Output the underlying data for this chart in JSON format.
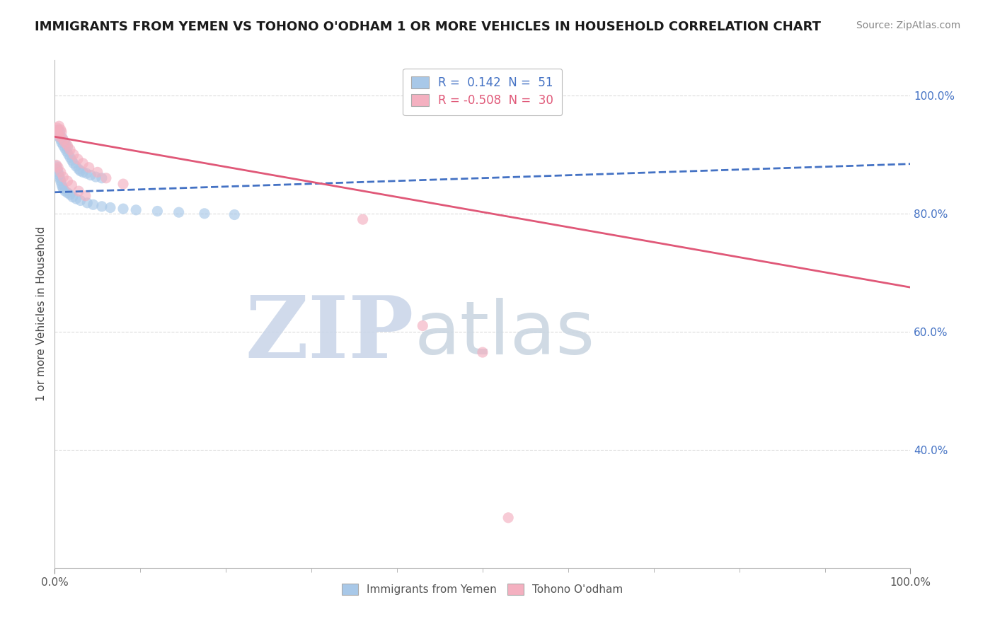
{
  "title": "IMMIGRANTS FROM YEMEN VS TOHONO O'ODHAM 1 OR MORE VEHICLES IN HOUSEHOLD CORRELATION CHART",
  "source": "Source: ZipAtlas.com",
  "ylabel": "1 or more Vehicles in Household",
  "xlim": [
    0.0,
    1.0
  ],
  "ylim": [
    0.2,
    1.06
  ],
  "x_tick_labels": [
    "0.0%",
    "100.0%"
  ],
  "y_ticks": [
    0.4,
    0.6,
    0.8,
    1.0
  ],
  "y_tick_labels": [
    "40.0%",
    "60.0%",
    "80.0%",
    "100.0%"
  ],
  "legend1_labels": [
    "R =  0.142  N =  51",
    "R = -0.508  N =  30"
  ],
  "legend2_labels": [
    "Immigrants from Yemen",
    "Tohono O'odham"
  ],
  "blue_x": [
    0.002,
    0.003,
    0.004,
    0.005,
    0.006,
    0.007,
    0.008,
    0.009,
    0.01,
    0.011,
    0.012,
    0.013,
    0.014,
    0.015,
    0.016,
    0.018,
    0.02,
    0.022,
    0.025,
    0.028,
    0.03,
    0.033,
    0.037,
    0.042,
    0.048,
    0.055,
    0.002,
    0.003,
    0.004,
    0.005,
    0.006,
    0.007,
    0.008,
    0.009,
    0.01,
    0.012,
    0.015,
    0.018,
    0.021,
    0.025,
    0.03,
    0.038,
    0.045,
    0.055,
    0.065,
    0.08,
    0.095,
    0.12,
    0.145,
    0.175,
    0.21
  ],
  "blue_y": [
    0.94,
    0.935,
    0.942,
    0.93,
    0.938,
    0.925,
    0.92,
    0.928,
    0.915,
    0.922,
    0.91,
    0.918,
    0.905,
    0.912,
    0.9,
    0.895,
    0.89,
    0.885,
    0.88,
    0.875,
    0.872,
    0.87,
    0.868,
    0.865,
    0.862,
    0.86,
    0.88,
    0.875,
    0.87,
    0.865,
    0.86,
    0.855,
    0.85,
    0.845,
    0.842,
    0.838,
    0.835,
    0.832,
    0.828,
    0.825,
    0.822,
    0.818,
    0.815,
    0.812,
    0.81,
    0.808,
    0.806,
    0.804,
    0.802,
    0.8,
    0.798
  ],
  "pink_x": [
    0.002,
    0.003,
    0.004,
    0.005,
    0.006,
    0.007,
    0.008,
    0.01,
    0.012,
    0.015,
    0.018,
    0.022,
    0.027,
    0.033,
    0.04,
    0.05,
    0.06,
    0.08,
    0.002,
    0.004,
    0.007,
    0.01,
    0.015,
    0.02,
    0.028,
    0.036,
    0.36,
    0.43,
    0.5,
    0.53
  ],
  "pink_y": [
    0.94,
    0.945,
    0.935,
    0.948,
    0.93,
    0.942,
    0.938,
    0.925,
    0.92,
    0.915,
    0.908,
    0.9,
    0.892,
    0.885,
    0.878,
    0.87,
    0.86,
    0.85,
    0.882,
    0.878,
    0.87,
    0.862,
    0.855,
    0.848,
    0.838,
    0.83,
    0.79,
    0.61,
    0.565,
    0.285
  ],
  "blue_scatter_color": "#a8c8e8",
  "pink_scatter_color": "#f4b0c0",
  "blue_line_color": "#4472c4",
  "pink_line_color": "#e05878",
  "scatter_size": 120,
  "scatter_alpha": 0.65,
  "watermark_zip": "ZIP",
  "watermark_atlas": "atlas",
  "watermark_color_zip": "#c8d4e8",
  "watermark_color_atlas": "#c8d4e0",
  "grid_color": "#cccccc",
  "background_color": "#ffffff",
  "blue_line_intercept": 0.836,
  "blue_line_slope": 0.048,
  "pink_line_intercept": 0.93,
  "pink_line_slope": -0.255
}
